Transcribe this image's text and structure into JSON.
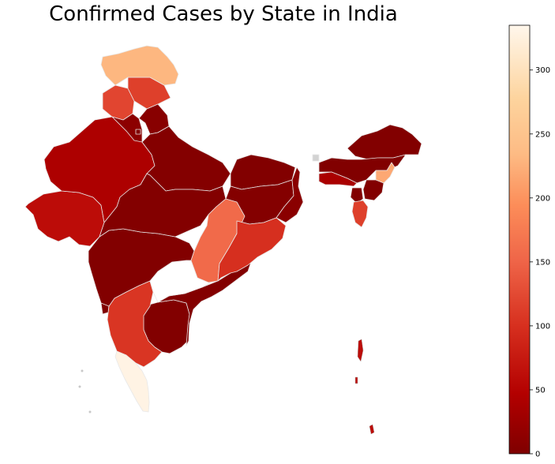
{
  "title": "Confirmed Cases by State in India",
  "colorbar": {
    "min": 0,
    "max": 335,
    "ticks": [
      "0",
      "50",
      "100",
      "150",
      "200",
      "250",
      "300"
    ],
    "colormap": "OrRd (reversed)",
    "color_stops": [
      "#7f0000",
      "#b30000",
      "#d7301f",
      "#ef6548",
      "#fc8d59",
      "#fdbb84",
      "#fdd49e",
      "#fff7ec"
    ]
  },
  "chart_data": {
    "type": "choropleth",
    "title": "Confirmed Cases by State in India",
    "scale": {
      "min": 0,
      "max": 335
    },
    "missing_color": "#d3d3d3",
    "states": [
      {
        "id": "jammu-kashmir",
        "value": 235
      },
      {
        "id": "himachal-pradesh",
        "value": 110
      },
      {
        "id": "punjab",
        "value": 115
      },
      {
        "id": "uttarakhand",
        "value": 8
      },
      {
        "id": "haryana",
        "value": 12
      },
      {
        "id": "rajasthan",
        "value": 42
      },
      {
        "id": "uttar-pradesh",
        "value": 5
      },
      {
        "id": "delhi",
        "value": 3
      },
      {
        "id": "gujarat",
        "value": 60
      },
      {
        "id": "madhya-pradesh",
        "value": 4
      },
      {
        "id": "bihar",
        "value": 3
      },
      {
        "id": "jharkhand",
        "value": 5
      },
      {
        "id": "west-bengal",
        "value": 10
      },
      {
        "id": "chhattisgarh",
        "value": 150
      },
      {
        "id": "odisha",
        "value": 95
      },
      {
        "id": "maharashtra",
        "value": 3
      },
      {
        "id": "telangana",
        "value": null
      },
      {
        "id": "andhra-pradesh",
        "value": 4
      },
      {
        "id": "karnataka",
        "value": 100
      },
      {
        "id": "kerala",
        "value": 330
      },
      {
        "id": "tamil-nadu",
        "value": 3
      },
      {
        "id": "goa",
        "value": 2
      },
      {
        "id": "sikkim",
        "value": null
      },
      {
        "id": "arunachal-pradesh",
        "value": 3
      },
      {
        "id": "assam",
        "value": 2
      },
      {
        "id": "meghalaya",
        "value": 40
      },
      {
        "id": "nagaland",
        "value": 220
      },
      {
        "id": "manipur",
        "value": 3
      },
      {
        "id": "mizoram",
        "value": 110
      },
      {
        "id": "tripura",
        "value": 3
      },
      {
        "id": "andaman-nicobar",
        "value": 60
      },
      {
        "id": "lakshadweep",
        "value": null
      }
    ]
  }
}
